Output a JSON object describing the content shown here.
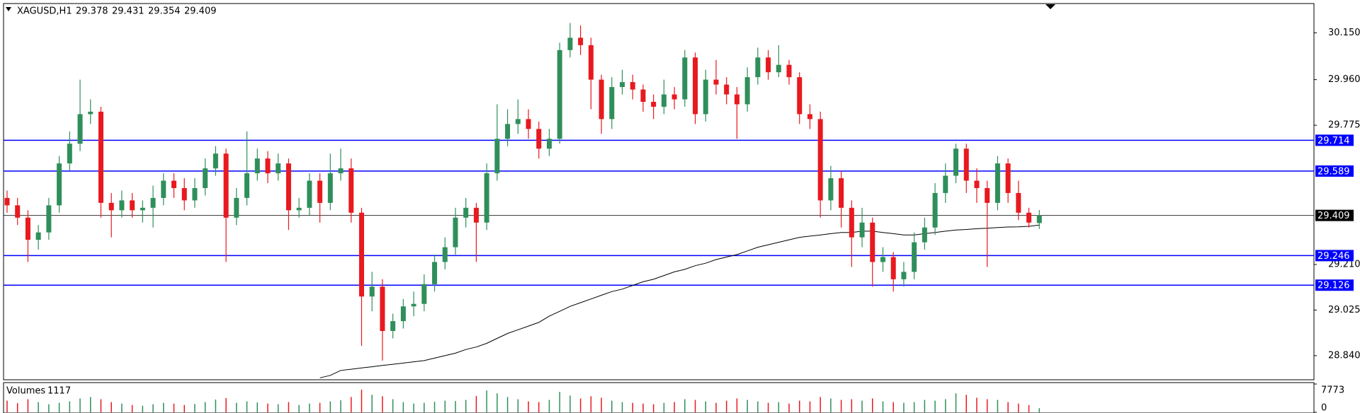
{
  "chart_data": {
    "type": "candlestick",
    "symbol": "XAGUSD,H1",
    "volume_title": "Volumes",
    "bull_color": "#2f8f5b",
    "bear_color": "#e8191f",
    "ylim": [
      28.745,
      30.266
    ],
    "yticks": [
      {
        "value": 30.15,
        "label": "30.150"
      },
      {
        "value": 29.96,
        "label": "29.960"
      },
      29.775,
      {
        "value": 29.21,
        "label": "29.210"
      },
      29.025,
      {
        "value": 28.84,
        "label": "28.840"
      }
    ],
    "levels": [
      {
        "value": 29.714,
        "color": "#0000ff"
      },
      {
        "value": 29.589,
        "color": "#0000ff"
      },
      {
        "value": 29.246,
        "color": "#0000ff"
      },
      {
        "value": 29.126,
        "color": "#0000ff"
      }
    ],
    "candles": [
      [
        29.48,
        29.51,
        29.42,
        29.45
      ],
      [
        29.45,
        29.48,
        29.37,
        29.4
      ],
      [
        29.4,
        29.43,
        29.22,
        29.31
      ],
      [
        29.31,
        29.37,
        29.27,
        29.34
      ],
      [
        29.34,
        29.48,
        29.31,
        29.45
      ],
      [
        29.45,
        29.65,
        29.42,
        29.62
      ],
      [
        29.62,
        29.75,
        29.59,
        29.7
      ],
      [
        29.7,
        29.96,
        29.67,
        29.82
      ],
      [
        29.82,
        29.88,
        29.78,
        29.83
      ],
      [
        29.83,
        29.85,
        29.4,
        29.46
      ],
      [
        29.46,
        29.5,
        29.32,
        29.43
      ],
      [
        29.43,
        29.51,
        29.4,
        29.47
      ],
      [
        29.47,
        29.5,
        29.4,
        29.43
      ],
      [
        29.43,
        29.47,
        29.38,
        29.44
      ],
      [
        29.44,
        29.53,
        29.36,
        29.48
      ],
      [
        29.48,
        29.58,
        29.45,
        29.55
      ],
      [
        29.55,
        29.58,
        29.48,
        29.52
      ],
      [
        29.52,
        29.56,
        29.43,
        29.47
      ],
      [
        29.47,
        29.56,
        29.44,
        29.52
      ],
      [
        29.52,
        29.64,
        29.49,
        29.6
      ],
      [
        29.6,
        29.69,
        29.57,
        29.66
      ],
      [
        29.66,
        29.68,
        29.22,
        29.4
      ],
      [
        29.4,
        29.52,
        29.37,
        29.48
      ],
      [
        29.48,
        29.75,
        29.45,
        29.58
      ],
      [
        29.58,
        29.68,
        29.55,
        29.64
      ],
      [
        29.64,
        29.67,
        29.54,
        29.58
      ],
      [
        29.58,
        29.66,
        29.55,
        29.62
      ],
      [
        29.62,
        29.64,
        29.35,
        29.43
      ],
      [
        29.43,
        29.48,
        29.4,
        29.44
      ],
      [
        29.44,
        29.58,
        29.41,
        29.55
      ],
      [
        29.55,
        29.58,
        29.38,
        29.46
      ],
      [
        29.46,
        29.66,
        29.43,
        29.58
      ],
      [
        29.58,
        29.68,
        29.55,
        29.6
      ],
      [
        29.6,
        29.64,
        29.38,
        29.42
      ],
      [
        29.42,
        29.44,
        28.88,
        29.08
      ],
      [
        29.08,
        29.18,
        29.02,
        29.12
      ],
      [
        29.12,
        29.15,
        28.82,
        28.94
      ],
      [
        28.94,
        29.01,
        28.91,
        28.98
      ],
      [
        28.98,
        29.07,
        28.95,
        29.04
      ],
      [
        29.04,
        29.1,
        29.0,
        29.05
      ],
      [
        29.05,
        29.17,
        29.02,
        29.13
      ],
      [
        29.13,
        29.25,
        29.1,
        29.22
      ],
      [
        29.22,
        29.32,
        29.19,
        29.28
      ],
      [
        29.28,
        29.44,
        29.25,
        29.4
      ],
      [
        29.4,
        29.48,
        29.36,
        29.44
      ],
      [
        29.44,
        29.46,
        29.22,
        29.38
      ],
      [
        29.38,
        29.62,
        29.35,
        29.58
      ],
      [
        29.58,
        29.86,
        29.55,
        29.72
      ],
      [
        29.72,
        29.84,
        29.69,
        29.78
      ],
      [
        29.78,
        29.88,
        29.74,
        29.8
      ],
      [
        29.8,
        29.84,
        29.72,
        29.76
      ],
      [
        29.76,
        29.79,
        29.64,
        29.68
      ],
      [
        29.68,
        29.76,
        29.65,
        29.72
      ],
      [
        29.72,
        30.11,
        29.7,
        30.08
      ],
      [
        30.08,
        30.19,
        30.05,
        30.13
      ],
      [
        30.13,
        30.18,
        30.06,
        30.1
      ],
      [
        30.1,
        30.13,
        29.84,
        29.96
      ],
      [
        29.96,
        29.98,
        29.74,
        29.8
      ],
      [
        29.8,
        29.97,
        29.76,
        29.93
      ],
      [
        29.93,
        30.0,
        29.9,
        29.95
      ],
      [
        29.95,
        29.98,
        29.88,
        29.92
      ],
      [
        29.92,
        29.94,
        29.83,
        29.87
      ],
      [
        29.87,
        29.9,
        29.8,
        29.85
      ],
      [
        29.85,
        29.96,
        29.82,
        29.9
      ],
      [
        29.9,
        29.93,
        29.84,
        29.88
      ],
      [
        29.88,
        30.08,
        29.85,
        30.05
      ],
      [
        30.05,
        30.07,
        29.78,
        29.82
      ],
      [
        29.82,
        30.0,
        29.79,
        29.96
      ],
      [
        29.96,
        30.04,
        29.9,
        29.94
      ],
      [
        29.94,
        29.97,
        29.86,
        29.9
      ],
      [
        29.9,
        29.93,
        29.72,
        29.86
      ],
      [
        29.86,
        30.01,
        29.83,
        29.97
      ],
      [
        29.97,
        30.09,
        29.94,
        30.05
      ],
      [
        30.05,
        30.08,
        29.96,
        29.99
      ],
      [
        29.99,
        30.1,
        29.97,
        30.02
      ],
      [
        30.02,
        30.04,
        29.94,
        29.97
      ],
      [
        29.97,
        29.99,
        29.78,
        29.82
      ],
      [
        29.82,
        29.86,
        29.76,
        29.8
      ],
      [
        29.8,
        29.83,
        29.4,
        29.47
      ],
      [
        29.47,
        29.61,
        29.43,
        29.56
      ],
      [
        29.56,
        29.59,
        29.36,
        29.44
      ],
      [
        29.44,
        29.47,
        29.2,
        29.32
      ],
      [
        29.32,
        29.44,
        29.28,
        29.38
      ],
      [
        29.38,
        29.4,
        29.12,
        29.22
      ],
      [
        29.22,
        29.28,
        29.18,
        29.24
      ],
      [
        29.24,
        29.26,
        29.1,
        29.15
      ],
      [
        29.15,
        29.22,
        29.12,
        29.18
      ],
      [
        29.18,
        29.34,
        29.15,
        29.3
      ],
      [
        29.3,
        29.4,
        29.27,
        29.36
      ],
      [
        29.36,
        29.54,
        29.33,
        29.5
      ],
      [
        29.5,
        29.62,
        29.46,
        29.57
      ],
      [
        29.57,
        29.7,
        29.54,
        29.68
      ],
      [
        29.68,
        29.7,
        29.5,
        29.55
      ],
      [
        29.55,
        29.6,
        29.46,
        29.52
      ],
      [
        29.52,
        29.55,
        29.2,
        29.46
      ],
      [
        29.46,
        29.65,
        29.43,
        29.62
      ],
      [
        29.62,
        29.64,
        29.46,
        29.5
      ],
      [
        29.5,
        29.55,
        29.39,
        29.42
      ],
      [
        29.42,
        29.44,
        29.36,
        29.38
      ],
      [
        29.378,
        29.431,
        29.354,
        29.409
      ]
    ],
    "ma": [
      null,
      null,
      null,
      null,
      null,
      null,
      null,
      null,
      null,
      null,
      null,
      null,
      null,
      null,
      null,
      null,
      null,
      null,
      null,
      null,
      null,
      null,
      null,
      null,
      null,
      null,
      null,
      null,
      null,
      null,
      28.75,
      28.76,
      28.78,
      28.785,
      28.79,
      28.795,
      28.8,
      28.805,
      28.81,
      28.815,
      28.82,
      28.83,
      28.84,
      28.85,
      28.865,
      28.875,
      28.89,
      28.91,
      28.93,
      28.945,
      28.96,
      28.975,
      29.0,
      29.02,
      29.04,
      29.055,
      29.07,
      29.085,
      29.1,
      29.11,
      29.125,
      29.14,
      29.15,
      29.165,
      29.18,
      29.19,
      29.205,
      29.215,
      29.23,
      29.24,
      29.25,
      29.265,
      29.28,
      29.29,
      29.3,
      29.31,
      29.32,
      29.325,
      29.33,
      29.335,
      29.34,
      29.34,
      29.345,
      29.345,
      29.34,
      29.335,
      29.33,
      29.33,
      29.335,
      29.34,
      29.345,
      29.35,
      29.352,
      29.355,
      29.357,
      29.36,
      29.362,
      29.363,
      29.365,
      29.37
    ],
    "ma_color": "#000000",
    "volumes": [
      3200,
      2500,
      3600,
      2800,
      2200,
      2600,
      3000,
      3800,
      4200,
      3600,
      2800,
      2400,
      2000,
      1800,
      2200,
      2600,
      2400,
      2000,
      2300,
      2800,
      3500,
      3900,
      2600,
      3000,
      2700,
      2400,
      2200,
      2800,
      2000,
      2400,
      2600,
      3000,
      3300,
      4200,
      6200,
      4800,
      4400,
      3600,
      2800,
      2400,
      2600,
      2900,
      3200,
      3100,
      3400,
      4500,
      6000,
      5200,
      4200,
      3600,
      3000,
      2800,
      3400,
      5600,
      4600,
      3800,
      4400,
      4000,
      3200,
      2800,
      2600,
      2400,
      2200,
      2600,
      2800,
      3600,
      3400,
      3000,
      2600,
      3200,
      3800,
      3400,
      3000,
      2600,
      2800,
      2400,
      3200,
      3000,
      4200,
      3800,
      3400,
      3600,
      3200,
      3800,
      3000,
      2800,
      2600,
      2800,
      3400,
      3200,
      3600,
      5200,
      4800,
      4000,
      3600,
      3400,
      2800,
      2400,
      2000,
      1117
    ],
    "volume_ylim": [
      0,
      7773
    ],
    "volume_yticks": [
      7773,
      0
    ]
  }
}
